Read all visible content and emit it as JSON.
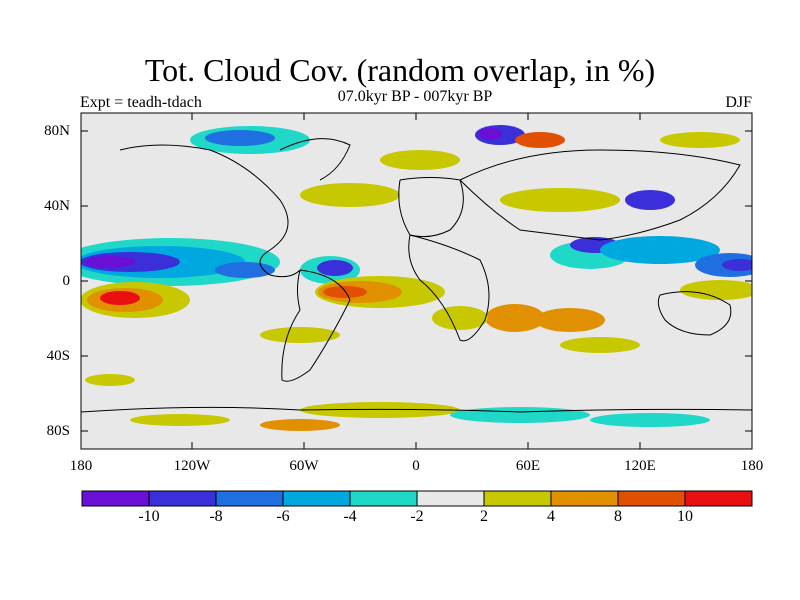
{
  "title": "Tot. Cloud Cov. (random overlap, in %)",
  "subtitle": "07.0kyr BP - 007kyr BP",
  "left_label": "Expt = teadh-tdach",
  "right_label": "DJF",
  "lat_labels": [
    "80N",
    "40N",
    "0",
    "40S",
    "80S"
  ],
  "lon_labels": [
    "180",
    "120W",
    "60W",
    "0",
    "60E",
    "120E",
    "180"
  ],
  "colorbar": {
    "colors": [
      "#6a0fd6",
      "#3a2fd8",
      "#1f6fe0",
      "#00a8e0",
      "#1fd8c8",
      "#e8e8e8",
      "#c8c800",
      "#e09000",
      "#e05000",
      "#e81010"
    ],
    "labels": [
      "-10",
      "-8",
      "-6",
      "-4",
      "-2",
      "2",
      "4",
      "8",
      "10"
    ]
  },
  "colors": {
    "background": "#e8e8e8",
    "coastline": "#000000"
  }
}
